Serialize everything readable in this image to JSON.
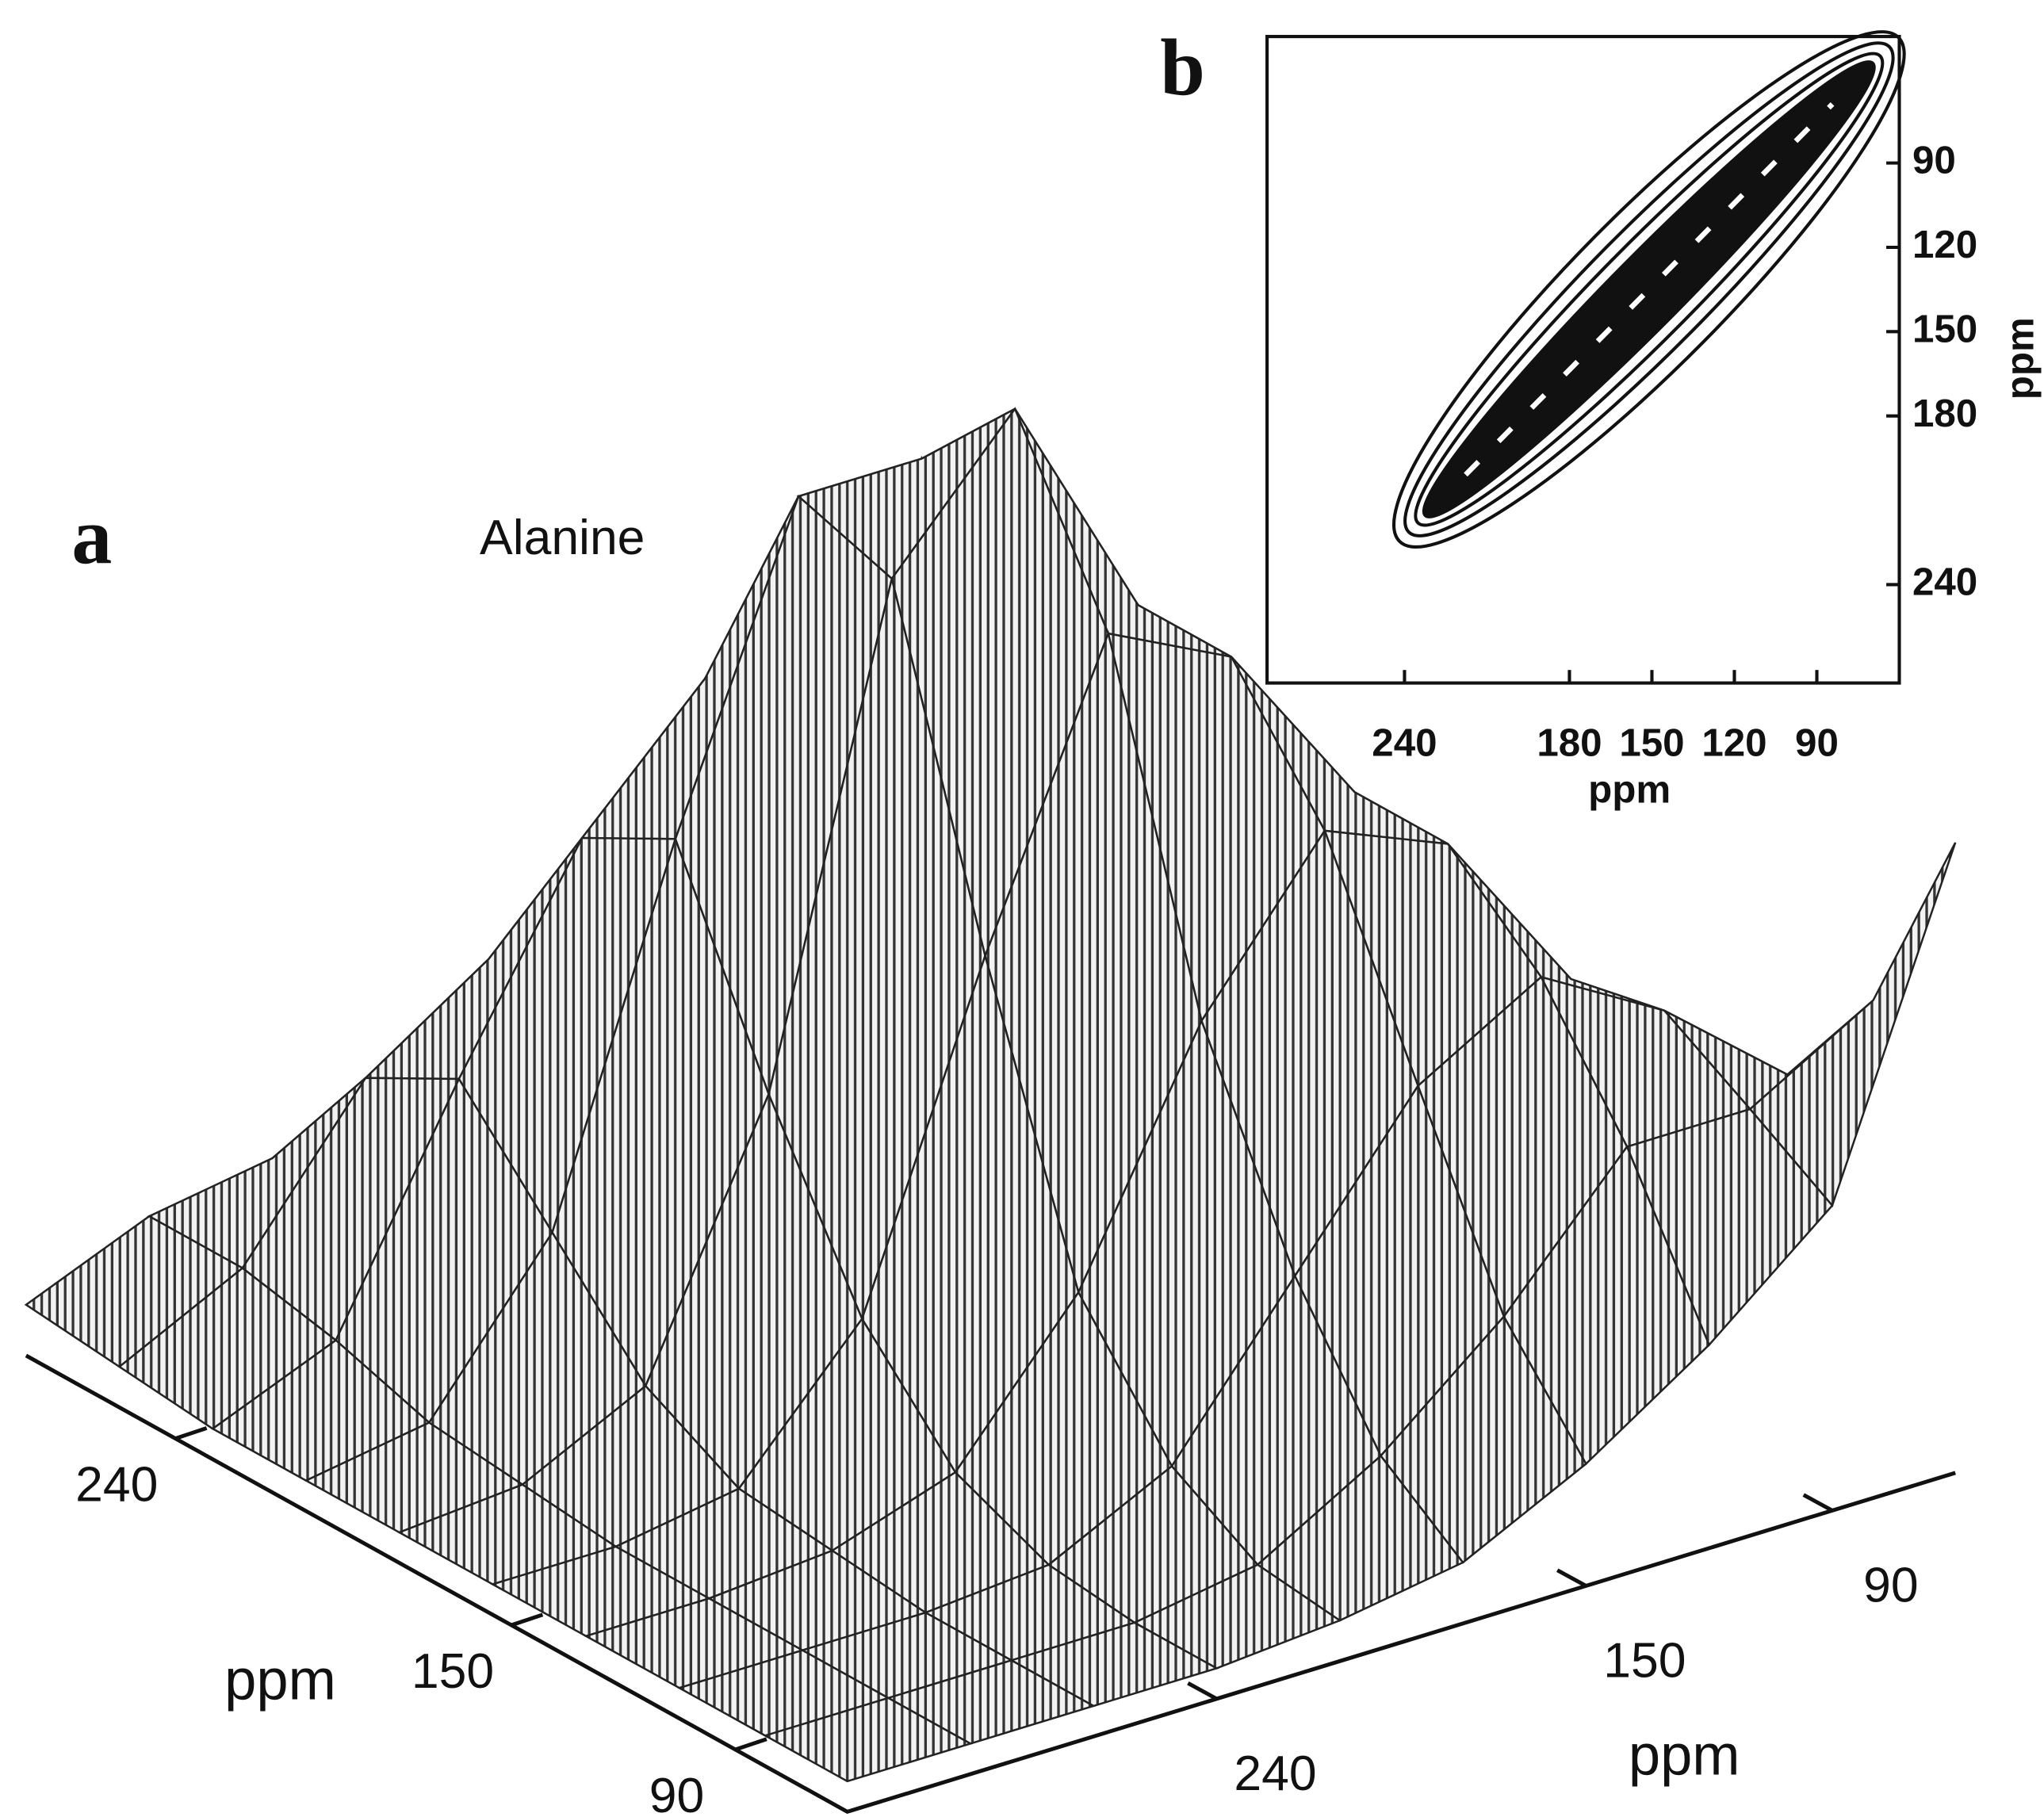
{
  "chart_data": [
    {
      "type": "surface",
      "panel": "a",
      "title": "Alanine",
      "xlabel": "ppm",
      "ylabel": "ppm",
      "x": [
        330,
        300,
        270,
        240,
        210,
        180,
        150,
        120,
        90,
        60
      ],
      "y": [
        280,
        255,
        230,
        205,
        180,
        155,
        130,
        105,
        82,
        60
      ],
      "z": [
        [
          0.05,
          0.1,
          0.12,
          0.15,
          0.15,
          0.1,
          0.06,
          0.04,
          0.03,
          0.03
        ],
        [
          0.04,
          0.1,
          0.25,
          0.33,
          0.35,
          0.25,
          0.13,
          0.06,
          0.04,
          0.03
        ],
        [
          0.03,
          0.08,
          0.3,
          0.5,
          0.62,
          0.5,
          0.3,
          0.14,
          0.06,
          0.03
        ],
        [
          0.03,
          0.05,
          0.2,
          0.55,
          0.85,
          0.85,
          0.5,
          0.25,
          0.1,
          0.04
        ],
        [
          0.03,
          0.04,
          0.1,
          0.35,
          0.82,
          0.95,
          0.72,
          0.4,
          0.18,
          0.06
        ],
        [
          0.03,
          0.03,
          0.05,
          0.18,
          0.5,
          0.78,
          0.72,
          0.55,
          0.3,
          0.12
        ],
        [
          0.03,
          0.03,
          0.04,
          0.08,
          0.22,
          0.45,
          0.6,
          0.55,
          0.38,
          0.2
        ],
        [
          0.03,
          0.03,
          0.03,
          0.04,
          0.1,
          0.25,
          0.4,
          0.47,
          0.4,
          0.3
        ],
        [
          0.03,
          0.03,
          0.03,
          0.03,
          0.05,
          0.12,
          0.22,
          0.35,
          0.35,
          0.42
        ],
        [
          0.03,
          0.03,
          0.03,
          0.03,
          0.04,
          0.06,
          0.12,
          0.2,
          0.3,
          0.62
        ]
      ],
      "xlim": [
        330,
        60
      ],
      "ylim": [
        280,
        60
      ],
      "xticks": [
        240,
        150,
        90
      ],
      "yticks": [
        240,
        150,
        90
      ],
      "color": "#222222"
    },
    {
      "type": "contour",
      "panel": "b",
      "xlabel": "ppm",
      "ylabel": "ppm",
      "xlim": [
        290,
        60
      ],
      "ylim": [
        275,
        45
      ],
      "xticks": [
        240,
        180,
        150,
        120,
        90
      ],
      "yticks": [
        90,
        120,
        150,
        180,
        240
      ],
      "color": "#111111"
    }
  ]
}
